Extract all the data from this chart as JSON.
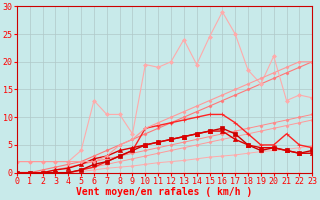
{
  "background_color": "#c8eaea",
  "grid_color": "#b0c8c8",
  "xlabel": "Vent moyen/en rafales ( km/h )",
  "xlabel_color": "#ff0000",
  "xlabel_fontsize": 7,
  "tick_label_color": "#ff0000",
  "tick_label_fontsize": 6,
  "ylim": [
    0,
    30
  ],
  "xlim": [
    0,
    23
  ],
  "yticks": [
    0,
    5,
    10,
    15,
    20,
    25,
    30
  ],
  "xticks": [
    0,
    1,
    2,
    3,
    4,
    5,
    6,
    7,
    8,
    9,
    10,
    11,
    12,
    13,
    14,
    15,
    16,
    17,
    18,
    19,
    20,
    21,
    22,
    23
  ],
  "series": [
    {
      "x": [
        0,
        1,
        2,
        3,
        4,
        5,
        6,
        7,
        8,
        9,
        10,
        11,
        12,
        13,
        14,
        15,
        16,
        17,
        18,
        19,
        20,
        21,
        22,
        23
      ],
      "y": [
        0,
        0,
        0,
        0,
        0,
        0,
        0,
        0,
        0,
        0,
        0,
        0,
        0,
        0,
        0,
        0,
        0,
        0,
        0,
        0,
        0,
        0,
        0,
        0
      ],
      "color": "#ffbbbb",
      "lw": 0.7,
      "marker": "D",
      "ms": 1.5
    },
    {
      "x": [
        0,
        1,
        2,
        3,
        4,
        5,
        6,
        7,
        8,
        9,
        10,
        11,
        12,
        13,
        14,
        15,
        16,
        17,
        18,
        19,
        20,
        21,
        22,
        23
      ],
      "y": [
        0,
        0,
        0,
        0,
        0,
        0.2,
        0.5,
        0.8,
        1,
        1.2,
        1.5,
        1.8,
        2,
        2.2,
        2.5,
        2.8,
        3,
        3.2,
        3.5,
        3.8,
        4,
        4.2,
        4.5,
        4.8
      ],
      "color": "#ffaaaa",
      "lw": 0.7,
      "marker": "D",
      "ms": 1.5
    },
    {
      "x": [
        0,
        1,
        2,
        3,
        4,
        5,
        6,
        7,
        8,
        9,
        10,
        11,
        12,
        13,
        14,
        15,
        16,
        17,
        18,
        19,
        20,
        21,
        22,
        23
      ],
      "y": [
        0,
        0,
        0,
        0,
        0,
        0.5,
        1,
        1.5,
        2,
        2.5,
        3,
        3.5,
        4,
        4.5,
        5,
        5.5,
        6,
        6.5,
        7,
        7.5,
        8,
        8.5,
        9,
        9.5
      ],
      "color": "#ff9999",
      "lw": 0.7,
      "marker": "D",
      "ms": 1.5
    },
    {
      "x": [
        0,
        1,
        2,
        3,
        4,
        5,
        6,
        7,
        8,
        9,
        10,
        11,
        12,
        13,
        14,
        15,
        16,
        17,
        18,
        19,
        20,
        21,
        22,
        23
      ],
      "y": [
        0,
        0,
        0,
        0.5,
        1,
        1.5,
        2,
        2.5,
        3,
        3.5,
        4,
        4.5,
        5,
        5.5,
        6,
        6.5,
        7,
        7.5,
        8,
        8.5,
        9,
        9.5,
        10,
        10.5
      ],
      "color": "#ff8888",
      "lw": 0.7,
      "marker": "D",
      "ms": 1.5
    },
    {
      "x": [
        0,
        1,
        2,
        3,
        4,
        5,
        6,
        7,
        8,
        9,
        10,
        11,
        12,
        13,
        14,
        15,
        16,
        17,
        18,
        19,
        20,
        21,
        22,
        23
      ],
      "y": [
        0,
        0,
        0.5,
        1,
        1.5,
        2,
        3,
        4,
        5,
        6,
        7,
        8,
        9,
        10,
        11,
        12,
        13,
        14,
        15,
        16,
        17,
        18,
        19,
        20
      ],
      "color": "#ff7777",
      "lw": 0.8,
      "marker": "D",
      "ms": 1.5
    },
    {
      "x": [
        0,
        1,
        2,
        3,
        4,
        5,
        6,
        7,
        8,
        9,
        10,
        11,
        12,
        13,
        14,
        15,
        16,
        17,
        18,
        19,
        20,
        21,
        22,
        23
      ],
      "y": [
        0,
        0,
        0,
        0,
        0,
        0.5,
        1,
        2,
        3,
        4,
        8,
        8.5,
        9,
        9.5,
        10,
        10.5,
        10.5,
        9,
        7,
        5,
        5,
        7,
        5,
        4.5
      ],
      "color": "#ff2222",
      "lw": 1.0,
      "marker": "+",
      "ms": 3
    },
    {
      "x": [
        0,
        1,
        2,
        3,
        4,
        5,
        6,
        7,
        8,
        9,
        10,
        11,
        12,
        13,
        14,
        15,
        16,
        17,
        18,
        19,
        20,
        21,
        22,
        23
      ],
      "y": [
        0,
        0,
        0,
        0,
        0,
        0.5,
        1.5,
        2,
        3,
        4,
        5,
        5.5,
        6,
        6.5,
        7,
        7.5,
        8,
        7,
        5,
        4,
        4.5,
        4,
        3.5,
        4
      ],
      "color": "#cc0000",
      "lw": 1.0,
      "marker": "s",
      "ms": 2.5
    },
    {
      "x": [
        0,
        1,
        2,
        3,
        4,
        5,
        6,
        7,
        8,
        9,
        10,
        11,
        12,
        13,
        14,
        15,
        16,
        17,
        18,
        19,
        20,
        21,
        22,
        23
      ],
      "y": [
        0,
        0,
        0,
        0.5,
        0.8,
        1.5,
        2.5,
        3,
        4,
        4.5,
        5,
        5.5,
        6,
        6.5,
        7,
        7.5,
        7.5,
        6,
        5,
        4.5,
        4.5,
        4,
        3.5,
        3.5
      ],
      "color": "#dd0000",
      "lw": 1.0,
      "marker": "^",
      "ms": 3
    },
    {
      "x": [
        0,
        1,
        2,
        3,
        4,
        5,
        6,
        7,
        8,
        9,
        10,
        11,
        12,
        13,
        14,
        15,
        16,
        17,
        18,
        19,
        20,
        21,
        22,
        23
      ],
      "y": [
        2,
        2,
        2,
        2,
        2,
        4,
        13,
        10.5,
        10.5,
        7,
        19.5,
        19,
        20,
        24,
        19.5,
        24.5,
        29,
        25,
        18.5,
        16,
        21,
        13,
        14,
        13.5
      ],
      "color": "#ffaaaa",
      "lw": 0.8,
      "marker": "D",
      "ms": 2
    },
    {
      "x": [
        0,
        1,
        2,
        3,
        4,
        5,
        6,
        7,
        8,
        9,
        10,
        11,
        12,
        13,
        14,
        15,
        16,
        17,
        18,
        19,
        20,
        21,
        22,
        23
      ],
      "y": [
        2,
        2,
        2,
        2,
        2,
        2,
        2,
        3,
        5,
        6,
        8,
        9,
        10,
        11,
        12,
        13,
        14,
        15,
        16,
        17,
        18,
        19,
        20,
        20
      ],
      "color": "#ff9999",
      "lw": 0.8,
      "marker": "D",
      "ms": 1.5
    }
  ]
}
